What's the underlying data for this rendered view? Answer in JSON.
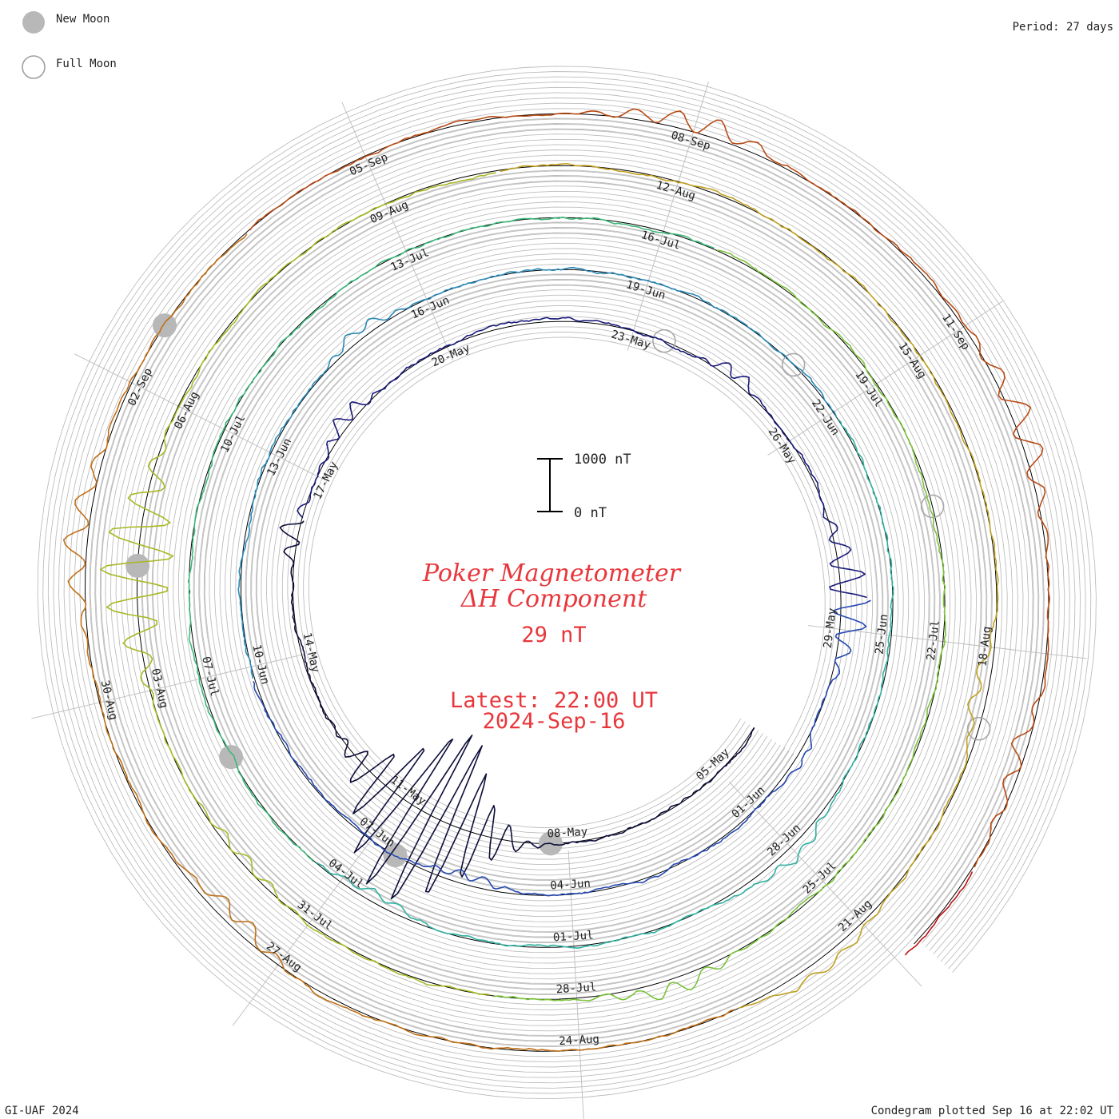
{
  "legend": {
    "new_moon_label": "New Moon",
    "full_moon_label": "Full Moon"
  },
  "period_label": "Period: 27 days",
  "credit": "GI-UAF 2024",
  "plotted": "Condegram plotted Sep 16 at 22:02 UT",
  "title_line1": "Poker Magnetometer",
  "title_line2": "ΔH Component",
  "current_value": "29 nT",
  "latest_time": "Latest: 22:00 UT",
  "latest_date": "2024-Sep-16",
  "scale": {
    "top_label": "1000 nT",
    "bottom_label": "0 nT",
    "span_nT": 1000
  },
  "chart_data": {
    "type": "line",
    "form": "spiral condegram",
    "period_days": 27,
    "start_date": "2024-05-04",
    "end_date": "2024-09-16",
    "colors": {
      "grid": "#bdbdbd",
      "baseline": "#000000",
      "text_accent": "#e8373c",
      "moon_fill": "#b8b8b8"
    },
    "series_colors": [
      "#0d0d3a",
      "#1a1a7a",
      "#2448b0",
      "#2b8ab8",
      "#2fb0a0",
      "#3db87a",
      "#7ac23a",
      "#a8b824",
      "#c0a020",
      "#c07018",
      "#b84a14",
      "#c01010"
    ],
    "day_labels": [
      {
        "text": "05-May",
        "day": 1
      },
      {
        "text": "08-May",
        "day": 4
      },
      {
        "text": "11-May",
        "day": 7
      },
      {
        "text": "14-May",
        "day": 10
      },
      {
        "text": "17-May",
        "day": 13
      },
      {
        "text": "20-May",
        "day": 16
      },
      {
        "text": "23-May",
        "day": 19
      },
      {
        "text": "26-May",
        "day": 22
      },
      {
        "text": "29-May",
        "day": 25
      },
      {
        "text": "01-Jun",
        "day": 28
      },
      {
        "text": "04-Jun",
        "day": 31
      },
      {
        "text": "07-Jun",
        "day": 34
      },
      {
        "text": "10-Jun",
        "day": 37
      },
      {
        "text": "13-Jun",
        "day": 40
      },
      {
        "text": "16-Jun",
        "day": 43
      },
      {
        "text": "19-Jun",
        "day": 46
      },
      {
        "text": "22-Jun",
        "day": 49
      },
      {
        "text": "25-Jun",
        "day": 52
      },
      {
        "text": "28-Jun",
        "day": 55
      },
      {
        "text": "01-Jul",
        "day": 58
      },
      {
        "text": "04-Jul",
        "day": 61
      },
      {
        "text": "07-Jul",
        "day": 64
      },
      {
        "text": "10-Jul",
        "day": 67
      },
      {
        "text": "13-Jul",
        "day": 70
      },
      {
        "text": "16-Jul",
        "day": 73
      },
      {
        "text": "19-Jul",
        "day": 76
      },
      {
        "text": "22-Jul",
        "day": 79
      },
      {
        "text": "25-Jul",
        "day": 82
      },
      {
        "text": "28-Jul",
        "day": 85
      },
      {
        "text": "31-Jul",
        "day": 88
      },
      {
        "text": "03-Aug",
        "day": 91
      },
      {
        "text": "06-Aug",
        "day": 94
      },
      {
        "text": "09-Aug",
        "day": 97
      },
      {
        "text": "12-Aug",
        "day": 100
      },
      {
        "text": "15-Aug",
        "day": 103
      },
      {
        "text": "18-Aug",
        "day": 106
      },
      {
        "text": "21-Aug",
        "day": 109
      },
      {
        "text": "24-Aug",
        "day": 112
      },
      {
        "text": "27-Aug",
        "day": 115
      },
      {
        "text": "30-Aug",
        "day": 118
      },
      {
        "text": "02-Sep",
        "day": 121
      },
      {
        "text": "05-Sep",
        "day": 124
      },
      {
        "text": "08-Sep",
        "day": 127
      },
      {
        "text": "11-Sep",
        "day": 130
      }
    ],
    "moon_phases": [
      {
        "type": "new",
        "day": 4.3
      },
      {
        "type": "full",
        "day": 19.5
      },
      {
        "type": "new",
        "day": 33.6
      },
      {
        "type": "full",
        "day": 48.2
      },
      {
        "type": "new",
        "day": 63.0
      },
      {
        "type": "full",
        "day": 77.5
      },
      {
        "type": "new",
        "day": 92.3
      },
      {
        "type": "full",
        "day": 106.8
      },
      {
        "type": "new",
        "day": 121.6
      }
    ],
    "disturbances": [
      {
        "day": 6.5,
        "width_days": 1.5,
        "peak_nT": -1800,
        "oscillation": 1.0
      },
      {
        "day": 12.0,
        "width_days": 0.6,
        "peak_nT": 350,
        "oscillation": 0.6
      },
      {
        "day": 14.0,
        "width_days": 0.8,
        "peak_nT": 300,
        "oscillation": 0.5
      },
      {
        "day": 24.5,
        "width_days": 1.2,
        "peak_nT": 550,
        "oscillation": 0.7
      },
      {
        "day": 20.7,
        "width_days": 0.6,
        "peak_nT": 250,
        "oscillation": 0.5
      },
      {
        "day": 27.0,
        "width_days": 0.6,
        "peak_nT": 200,
        "oscillation": 0.3
      },
      {
        "day": 32.5,
        "width_days": 0.8,
        "peak_nT": -250,
        "oscillation": 0.3
      },
      {
        "day": 42.0,
        "width_days": 0.8,
        "peak_nT": 230,
        "oscillation": 0.4
      },
      {
        "day": 55.0,
        "width_days": 1.0,
        "peak_nT": 260,
        "oscillation": 0.3
      },
      {
        "day": 60.5,
        "width_days": 0.8,
        "peak_nT": -250,
        "oscillation": 0.3
      },
      {
        "day": 84.0,
        "width_days": 1.0,
        "peak_nT": 300,
        "oscillation": 0.4
      },
      {
        "day": 89.0,
        "width_days": 1.0,
        "peak_nT": -200,
        "oscillation": 0.4
      },
      {
        "day": 92.3,
        "width_days": 1.2,
        "peak_nT": 700,
        "oscillation": 1.0
      },
      {
        "day": 106.5,
        "width_days": 0.8,
        "peak_nT": -300,
        "oscillation": 0.3
      },
      {
        "day": 109.5,
        "width_days": 1.0,
        "peak_nT": 250,
        "oscillation": 0.3
      },
      {
        "day": 115.5,
        "width_days": 0.8,
        "peak_nT": -350,
        "oscillation": 0.4
      },
      {
        "day": 119.5,
        "width_days": 1.0,
        "peak_nT": 450,
        "oscillation": 0.5
      },
      {
        "day": 127.0,
        "width_days": 1.0,
        "peak_nT": 350,
        "oscillation": 0.5
      },
      {
        "day": 131.0,
        "width_days": 1.0,
        "peak_nT": 400,
        "oscillation": 0.6
      },
      {
        "day": 134.0,
        "width_days": 0.8,
        "peak_nT": -300,
        "oscillation": 0.5
      }
    ]
  }
}
